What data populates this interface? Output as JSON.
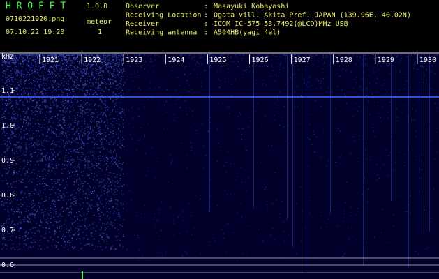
{
  "app": {
    "name": "H R O F F T",
    "version": "1.0.0",
    "file": "0710221920.png",
    "datetime": "07.10.22 19:20",
    "meteor_label": "meteor",
    "meteor_count": 1
  },
  "info": {
    "rows": [
      [
        "Observer",
        ":",
        "Masayuki Kobayashi"
      ],
      [
        "Receiving Location",
        ":",
        "Ogata-vill. Akita-Pref. JAPAN (139.96E, 40.02N)"
      ],
      [
        "Receiver",
        ":",
        "ICOM IC-575 53.7492(@LCD)MHz USB"
      ],
      [
        "Receiving antenna",
        ":",
        "A504HB(yagi 4el)"
      ]
    ]
  },
  "spectrogram": {
    "y_unit": "kHz",
    "ylim": [
      0.56,
      1.2
    ],
    "yticks": [
      {
        "value": 0.6,
        "label": "0.6"
      },
      0.7,
      0.8,
      0.9,
      {
        "value": 1.0,
        "label": "1.0"
      },
      1.1
    ],
    "xticks": [
      "1921",
      "1922",
      "1923",
      "1924",
      "1925",
      "1926",
      "1927",
      "1928",
      "1929",
      "1930"
    ]
  }
}
